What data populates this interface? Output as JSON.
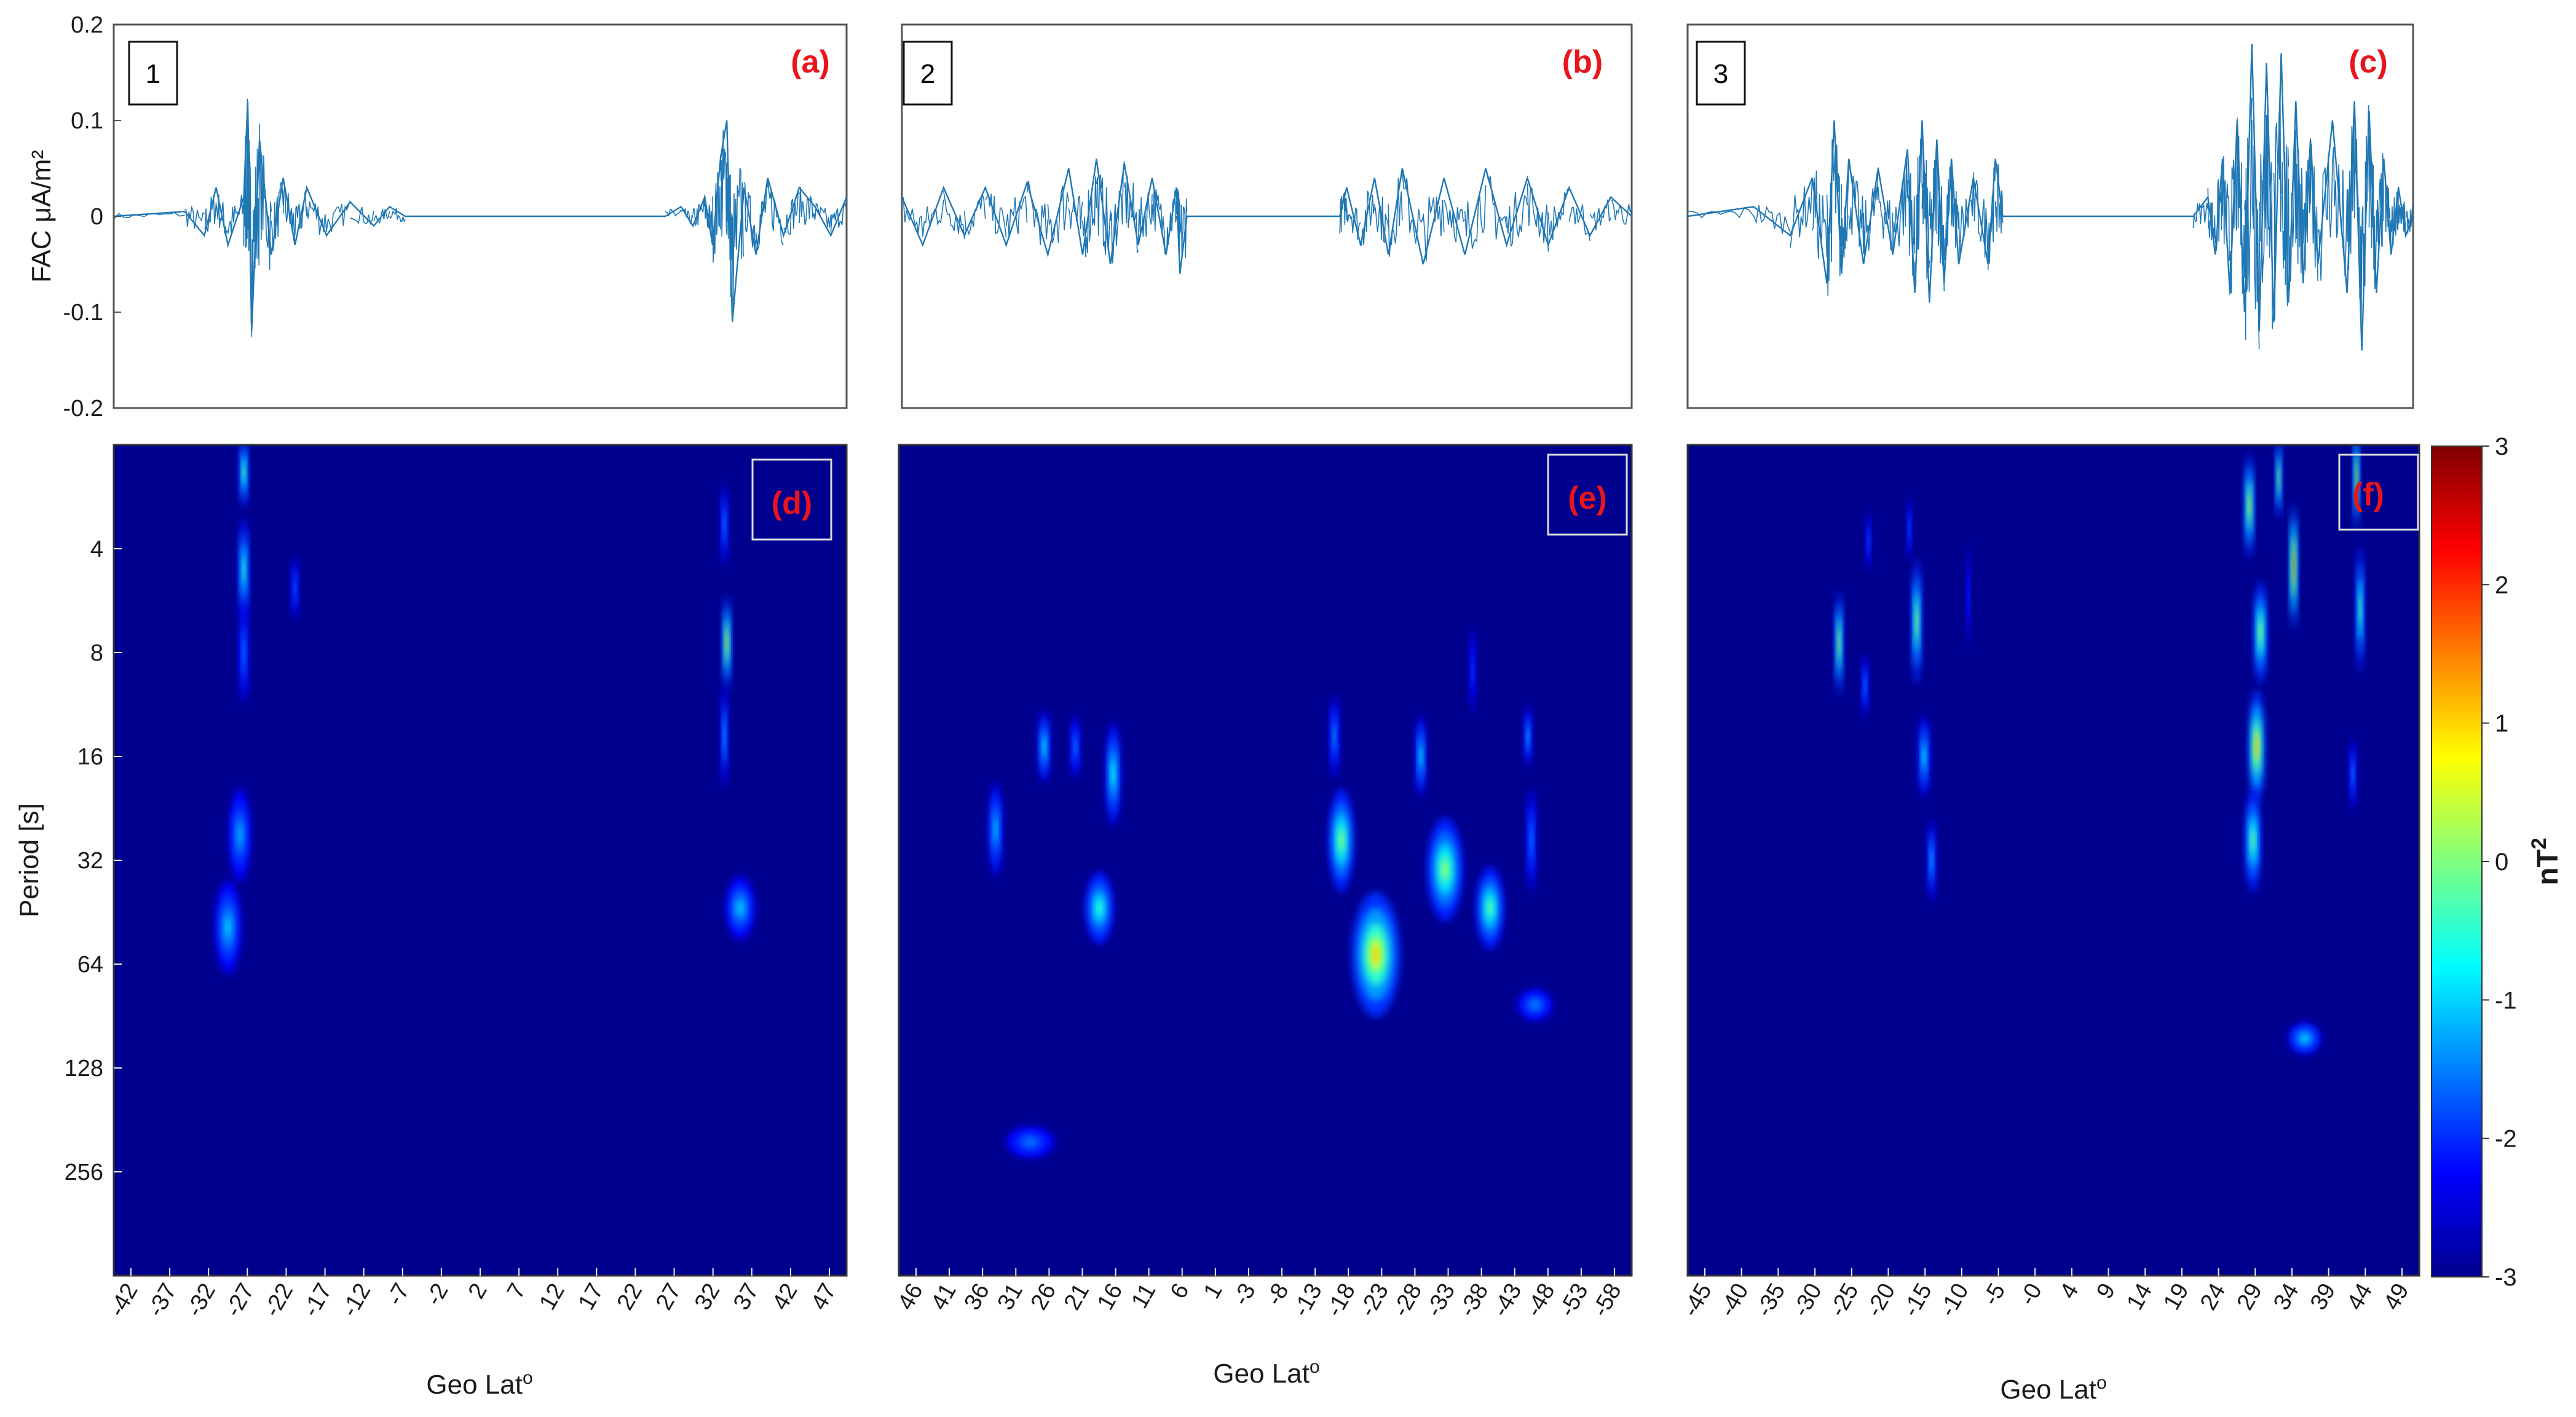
{
  "chart_data": [
    {
      "type": "line",
      "panel": "1",
      "letter": "(a)",
      "ylabel": "FAC μA/m²",
      "ylim": [
        -0.2,
        0.2
      ],
      "yticks": [
        "0.2",
        "0.1",
        "0",
        "-0.1",
        "-0.2"
      ],
      "series": [
        {
          "x": [
            -45,
            -36,
            -33.5,
            -32,
            -30.5,
            -28.5,
            -28,
            -27.5,
            -26.5,
            -25,
            -23.5,
            -22,
            -20.5,
            -18,
            -15,
            -12,
            -10,
            -8,
            -5,
            0,
            10,
            20,
            25,
            27,
            28.5,
            30,
            31,
            32,
            32.8,
            33.5,
            35,
            36.5,
            38,
            40,
            42,
            44,
            46,
            48
          ],
          "y": [
            0.0,
            0.005,
            -0.02,
            0.03,
            -0.03,
            0.02,
            0.12,
            -0.12,
            0.08,
            -0.04,
            0.04,
            -0.03,
            0.03,
            -0.02,
            0.015,
            -0.01,
            0.01,
            0.0,
            0.0,
            0.0,
            0.0,
            0.0,
            0.0,
            0.01,
            -0.01,
            0.02,
            -0.03,
            0.06,
            0.1,
            -0.11,
            0.03,
            -0.04,
            0.04,
            -0.02,
            0.03,
            0.01,
            -0.02,
            0.02
          ]
        }
      ]
    },
    {
      "type": "line",
      "panel": "2",
      "letter": "(b)",
      "ylim": [
        -0.2,
        0.2
      ],
      "series": [
        {
          "x": [
            47,
            44,
            41,
            38,
            35,
            32,
            29,
            26,
            23,
            21,
            19,
            17,
            15,
            13,
            11,
            9,
            7.5,
            7,
            6,
            0,
            -10,
            -16,
            -17,
            -19,
            -21,
            -23,
            -25,
            -28,
            -31,
            -34,
            -37,
            -40,
            -43,
            -46,
            -49,
            -52,
            -55,
            -58
          ],
          "y": [
            0.02,
            -0.03,
            0.03,
            -0.02,
            0.03,
            -0.03,
            0.035,
            -0.04,
            0.05,
            -0.04,
            0.06,
            -0.05,
            0.055,
            -0.03,
            0.04,
            -0.04,
            0.03,
            -0.06,
            0.0,
            0.0,
            0.0,
            0.0,
            0.03,
            -0.03,
            0.04,
            -0.04,
            0.05,
            -0.05,
            0.04,
            -0.04,
            0.05,
            -0.03,
            0.04,
            -0.03,
            0.03,
            -0.02,
            0.02,
            0.0
          ]
        }
      ]
    },
    {
      "type": "line",
      "panel": "3",
      "letter": "(c)",
      "ylim": [
        -0.2,
        0.2
      ],
      "series": [
        {
          "x": [
            -47,
            -38,
            -33,
            -30,
            -28,
            -27,
            -26,
            -25,
            -23,
            -21,
            -19,
            -17,
            -16,
            -15,
            -14,
            -13,
            -12,
            -11,
            -10,
            -8,
            -6,
            -5,
            -4,
            10,
            22,
            24,
            25,
            26,
            27,
            28,
            29,
            30,
            31,
            32,
            33,
            34,
            35,
            36,
            37,
            38,
            39,
            41,
            43,
            44,
            45,
            46,
            47,
            48,
            49,
            50,
            51,
            52
          ],
          "y": [
            0.0,
            0.01,
            -0.02,
            0.04,
            -0.07,
            0.1,
            -0.06,
            0.06,
            -0.05,
            0.05,
            -0.04,
            0.07,
            -0.08,
            0.1,
            -0.09,
            0.08,
            -0.07,
            0.06,
            -0.05,
            0.04,
            -0.05,
            0.06,
            0.0,
            0.0,
            0.0,
            0.02,
            -0.04,
            0.06,
            -0.08,
            0.1,
            -0.1,
            0.18,
            -0.12,
            0.16,
            -0.11,
            0.17,
            -0.09,
            0.12,
            -0.07,
            0.08,
            -0.05,
            0.1,
            -0.08,
            0.12,
            -0.14,
            0.11,
            -0.08,
            0.06,
            -0.04,
            0.03,
            -0.02,
            0.0
          ]
        }
      ]
    },
    {
      "type": "heatmap",
      "panel": "d",
      "letter": "(d)",
      "ylabel": "Period [s]",
      "xlabel": "Geo Lat",
      "xlabel_sup": "o",
      "xlim": [
        -45,
        48
      ],
      "xticks": [
        "-42",
        "-37",
        "-32",
        "-27",
        "-22",
        "-17",
        "-12",
        "-7",
        "-2",
        "2",
        "7",
        "12",
        "17",
        "22",
        "27",
        "32",
        "37",
        "42",
        "47"
      ],
      "yticks": [
        "4",
        "8",
        "16",
        "32",
        "64",
        "128",
        "256"
      ],
      "ylim_period": [
        2,
        512
      ],
      "y_scale": "log2",
      "blobs": [
        {
          "lat": -28.5,
          "period": 2.4,
          "w": 0.5,
          "h": 0.35,
          "level": 0.55
        },
        {
          "lat": -28.5,
          "period": 4.6,
          "w": 0.6,
          "h": 0.5,
          "level": 0.45
        },
        {
          "lat": -28.5,
          "period": 8.0,
          "w": 0.5,
          "h": 0.5,
          "level": 0.22
        },
        {
          "lat": -22.0,
          "period": 5.2,
          "w": 0.4,
          "h": 0.3,
          "level": 0.2
        },
        {
          "lat": -29.0,
          "period": 27,
          "w": 1.3,
          "h": 0.45,
          "level": 0.25
        },
        {
          "lat": -30.5,
          "period": 50,
          "w": 1.6,
          "h": 0.45,
          "level": 0.28
        },
        {
          "lat": 32.5,
          "period": 3.4,
          "w": 0.4,
          "h": 0.4,
          "level": 0.25
        },
        {
          "lat": 32.8,
          "period": 7.5,
          "w": 0.5,
          "h": 0.45,
          "level": 0.75
        },
        {
          "lat": 32.5,
          "period": 14,
          "w": 0.4,
          "h": 0.5,
          "level": 0.3
        },
        {
          "lat": 34.5,
          "period": 44,
          "w": 1.8,
          "h": 0.3,
          "level": 0.28
        }
      ]
    },
    {
      "type": "heatmap",
      "panel": "e",
      "letter": "(e)",
      "xlabel": "Geo Lat",
      "xlabel_sup": "o",
      "xlim": [
        47,
        -59
      ],
      "xticks": [
        "46",
        "41",
        "36",
        "31",
        "26",
        "21",
        "16",
        "11",
        "6",
        "1",
        "-3",
        "-8",
        "-13",
        "-18",
        "-23",
        "-28",
        "-33",
        "-38",
        "-43",
        "-48",
        "-53",
        "-58"
      ],
      "ylim_period": [
        2,
        512
      ],
      "y_scale": "log2",
      "blobs": [
        {
          "lat": 33.0,
          "period": 26,
          "w": 0.9,
          "h": 0.45,
          "level": 0.3
        },
        {
          "lat": 26.0,
          "period": 15,
          "w": 0.8,
          "h": 0.35,
          "level": 0.35
        },
        {
          "lat": 21.5,
          "period": 15,
          "w": 0.6,
          "h": 0.3,
          "level": 0.22
        },
        {
          "lat": 16.0,
          "period": 18,
          "w": 1.0,
          "h": 0.5,
          "level": 0.38
        },
        {
          "lat": 18.0,
          "period": 44,
          "w": 2.0,
          "h": 0.35,
          "level": 0.4
        },
        {
          "lat": 28.0,
          "period": 210,
          "w": 3.5,
          "h": 0.15,
          "level": 0.18
        },
        {
          "lat": -16.0,
          "period": 14,
          "w": 0.6,
          "h": 0.4,
          "level": 0.25
        },
        {
          "lat": -17.0,
          "period": 28,
          "w": 1.8,
          "h": 0.5,
          "level": 0.5
        },
        {
          "lat": -22.0,
          "period": 60,
          "w": 3.5,
          "h": 0.6,
          "level": 0.65
        },
        {
          "lat": -32.0,
          "period": 34,
          "w": 2.6,
          "h": 0.5,
          "level": 0.5
        },
        {
          "lat": -28.5,
          "period": 16,
          "w": 0.7,
          "h": 0.4,
          "level": 0.35
        },
        {
          "lat": -38.5,
          "period": 44,
          "w": 2.0,
          "h": 0.4,
          "level": 0.45
        },
        {
          "lat": -44.0,
          "period": 14,
          "w": 0.5,
          "h": 0.3,
          "level": 0.3
        },
        {
          "lat": -44.5,
          "period": 28,
          "w": 0.6,
          "h": 0.5,
          "level": 0.22
        },
        {
          "lat": -45.0,
          "period": 84,
          "w": 2.5,
          "h": 0.15,
          "level": 0.2
        },
        {
          "lat": -36.0,
          "period": 9,
          "w": 0.4,
          "h": 0.4,
          "level": 0.15
        }
      ]
    },
    {
      "type": "heatmap",
      "panel": "f",
      "letter": "(f)",
      "xlabel": "Geo Lat",
      "xlabel_sup": "o",
      "xlim": [
        -46,
        53
      ],
      "xticks": [
        "-45",
        "-40",
        "-35",
        "-30",
        "-25",
        "-20",
        "-15",
        "-10",
        "-5",
        "-0",
        "4",
        "9",
        "14",
        "19",
        "24",
        "29",
        "34",
        "39",
        "44",
        "49"
      ],
      "ylim_period": [
        2,
        512
      ],
      "y_scale": "log2",
      "blobs": [
        {
          "lat": -25.5,
          "period": 7.5,
          "w": 0.5,
          "h": 0.5,
          "level": 0.68
        },
        {
          "lat": -22.0,
          "period": 10,
          "w": 0.4,
          "h": 0.3,
          "level": 0.25
        },
        {
          "lat": -21.5,
          "period": 3.8,
          "w": 0.3,
          "h": 0.3,
          "level": 0.18
        },
        {
          "lat": -15.0,
          "period": 6.5,
          "w": 0.6,
          "h": 0.6,
          "level": 0.62
        },
        {
          "lat": -14.0,
          "period": 16,
          "w": 0.7,
          "h": 0.4,
          "level": 0.35
        },
        {
          "lat": -13.0,
          "period": 32,
          "w": 0.5,
          "h": 0.4,
          "level": 0.3
        },
        {
          "lat": -16.0,
          "period": 3.5,
          "w": 0.3,
          "h": 0.3,
          "level": 0.2
        },
        {
          "lat": -8.0,
          "period": 5.5,
          "w": 0.25,
          "h": 0.5,
          "level": 0.12
        },
        {
          "lat": 30.0,
          "period": 3.0,
          "w": 0.6,
          "h": 0.5,
          "level": 0.7
        },
        {
          "lat": 31.5,
          "period": 7.0,
          "w": 0.8,
          "h": 0.5,
          "level": 0.6
        },
        {
          "lat": 31.0,
          "period": 15,
          "w": 1.0,
          "h": 0.55,
          "level": 0.75
        },
        {
          "lat": 30.5,
          "period": 28,
          "w": 1.0,
          "h": 0.5,
          "level": 0.5
        },
        {
          "lat": 36.0,
          "period": 4.5,
          "w": 0.5,
          "h": 0.6,
          "level": 0.92
        },
        {
          "lat": 34.0,
          "period": 2.5,
          "w": 0.4,
          "h": 0.4,
          "level": 0.7
        },
        {
          "lat": 37.5,
          "period": 105,
          "w": 2.2,
          "h": 0.15,
          "level": 0.3
        },
        {
          "lat": 44.5,
          "period": 2.5,
          "w": 0.4,
          "h": 0.5,
          "level": 0.8
        },
        {
          "lat": 45.0,
          "period": 6.0,
          "w": 0.5,
          "h": 0.6,
          "level": 0.55
        },
        {
          "lat": 44.0,
          "period": 18,
          "w": 0.4,
          "h": 0.35,
          "level": 0.25
        }
      ]
    }
  ],
  "colorbar": {
    "title": "nT",
    "title_sup": "2",
    "ticks": [
      "3",
      "2",
      "1",
      "0",
      "-1",
      "-2",
      "-3"
    ],
    "range": [
      -3,
      3
    ]
  },
  "colors": {
    "line": "#1f77b4",
    "background_jet": "#00008f",
    "letter_red": "#e8161b"
  }
}
